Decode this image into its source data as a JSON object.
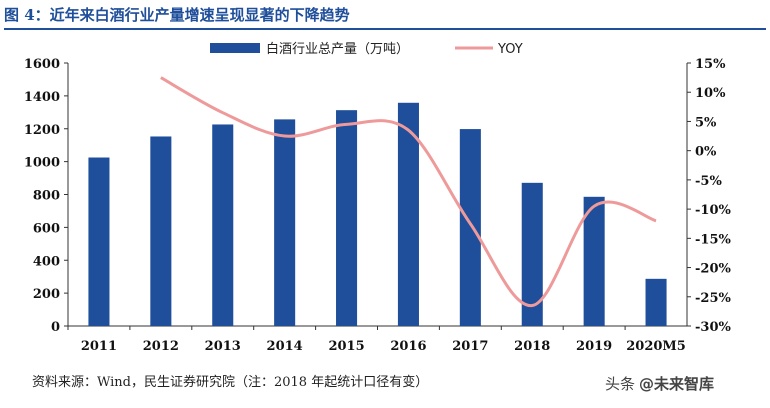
{
  "figure_label": "图 4：近年来白酒行业产量增速呈现显著的下降趋势",
  "source_note": "资料来源：Wind，民生证券研究院（注：2018 年起统计口径有变）",
  "watermark": {
    "platform": "头条",
    "handle": "@未来智库"
  },
  "colors": {
    "bar": "#1f4e9a",
    "line": "#ef9a9a",
    "title": "#1f4e9a"
  },
  "chart_data": {
    "type": "bar+line",
    "categories": [
      "2011",
      "2012",
      "2013",
      "2014",
      "2015",
      "2016",
      "2017",
      "2018",
      "2019",
      "2020M5"
    ],
    "series": [
      {
        "name": "白酒行业总产量（万吨）",
        "type": "bar",
        "axis": "left",
        "values": [
          1025,
          1153,
          1226,
          1257,
          1313,
          1358,
          1198,
          871,
          786,
          287
        ]
      },
      {
        "name": "YOY",
        "type": "line",
        "axis": "right",
        "unit": "%",
        "values": [
          null,
          12.5,
          6.5,
          2.5,
          4.5,
          3.5,
          -12.5,
          -26.5,
          -9.5,
          -12.0
        ]
      }
    ],
    "left_axis": {
      "min": 0,
      "max": 1600,
      "ticks": [
        "0",
        "200",
        "400",
        "600",
        "800",
        "1000",
        "1200",
        "1400",
        "1600"
      ]
    },
    "right_axis": {
      "min": -30,
      "max": 15,
      "ticks": [
        "-30%",
        "-25%",
        "-20%",
        "-15%",
        "-10%",
        "-5%",
        "0%",
        "5%",
        "10%",
        "15%"
      ]
    },
    "legend_position": "top-center",
    "grid": false
  }
}
